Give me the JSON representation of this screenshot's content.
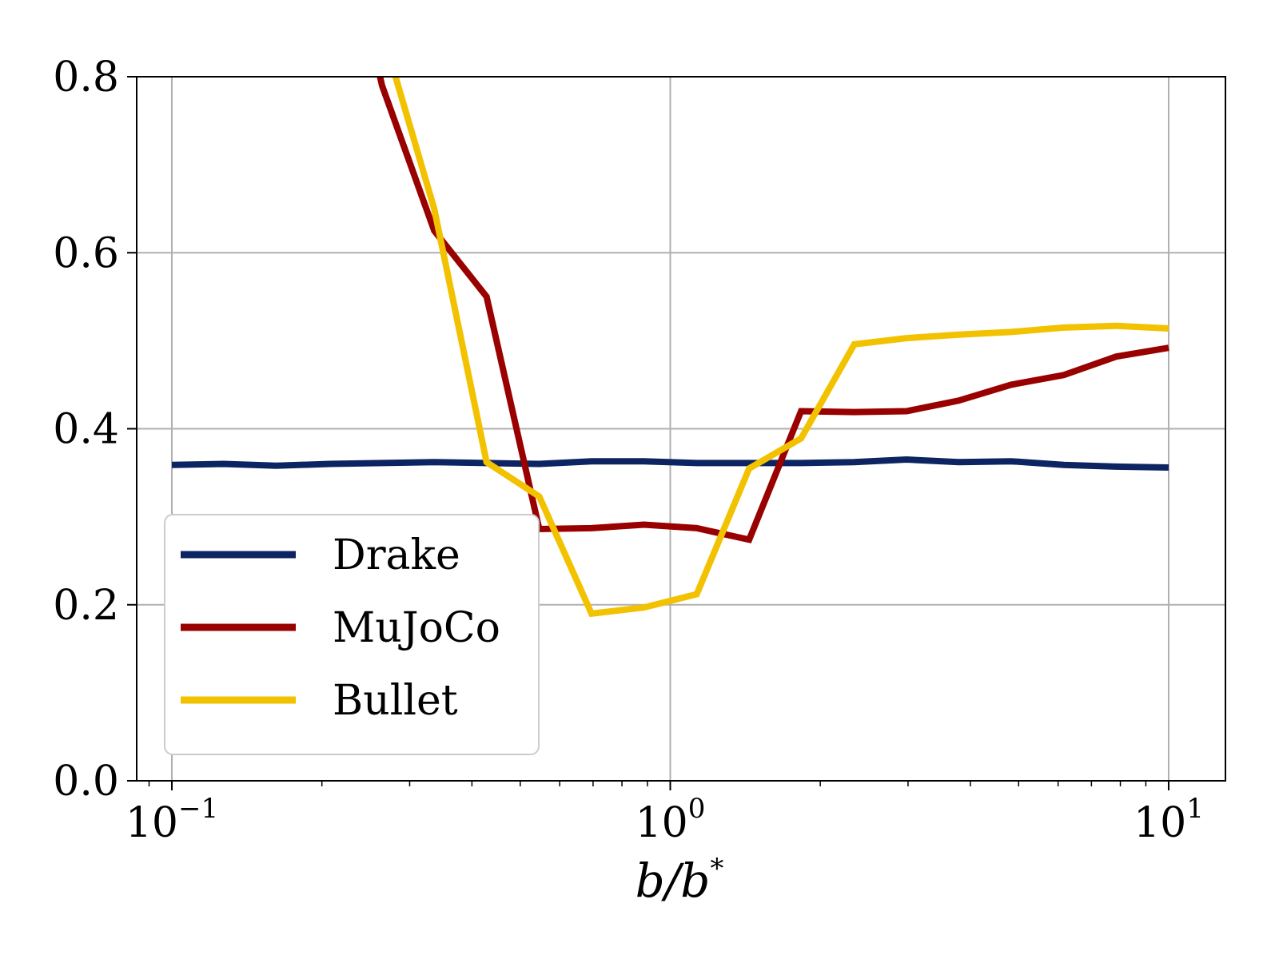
{
  "chart_data": {
    "type": "line",
    "xlabel": "b/b*",
    "ylabel": "",
    "xscale": "log",
    "xlim": [
      0.085,
      13
    ],
    "ylim": [
      0,
      0.8
    ],
    "grid": true,
    "legend_position": "lower-left",
    "x_ticks": [
      {
        "value": 0.1,
        "base": "10",
        "exp": "−1"
      },
      {
        "value": 1,
        "base": "10",
        "exp": "0"
      },
      {
        "value": 10,
        "base": "10",
        "exp": "1"
      }
    ],
    "y_ticks": [
      {
        "value": 0.0,
        "label": "0.0"
      },
      {
        "value": 0.2,
        "label": "0.2"
      },
      {
        "value": 0.4,
        "label": "0.4"
      },
      {
        "value": 0.6,
        "label": "0.6"
      },
      {
        "value": 0.8,
        "label": "0.8"
      }
    ],
    "series": [
      {
        "name": "Drake",
        "color": "#0c2461",
        "points": [
          [
            0.1,
            0.359
          ],
          [
            0.127,
            0.36
          ],
          [
            0.162,
            0.358
          ],
          [
            0.207,
            0.36
          ],
          [
            0.264,
            0.361
          ],
          [
            0.336,
            0.362
          ],
          [
            0.428,
            0.361
          ],
          [
            0.546,
            0.36
          ],
          [
            0.695,
            0.363
          ],
          [
            0.886,
            0.363
          ],
          [
            1.13,
            0.361
          ],
          [
            1.44,
            0.361
          ],
          [
            1.83,
            0.361
          ],
          [
            2.34,
            0.362
          ],
          [
            2.98,
            0.365
          ],
          [
            3.79,
            0.362
          ],
          [
            4.83,
            0.363
          ],
          [
            6.16,
            0.359
          ],
          [
            7.85,
            0.357
          ],
          [
            10.0,
            0.356
          ]
        ]
      },
      {
        "name": "MuJoCo",
        "color": "#990000",
        "points": [
          [
            0.25,
            0.85
          ],
          [
            0.264,
            0.79
          ],
          [
            0.336,
            0.625
          ],
          [
            0.428,
            0.55
          ],
          [
            0.546,
            0.286
          ],
          [
            0.695,
            0.287
          ],
          [
            0.886,
            0.291
          ],
          [
            1.13,
            0.287
          ],
          [
            1.44,
            0.274
          ],
          [
            1.83,
            0.42
          ],
          [
            2.34,
            0.419
          ],
          [
            2.98,
            0.42
          ],
          [
            3.79,
            0.432
          ],
          [
            4.83,
            0.45
          ],
          [
            6.16,
            0.461
          ],
          [
            7.85,
            0.482
          ],
          [
            10.0,
            0.492
          ]
        ]
      },
      {
        "name": "Bullet",
        "color": "#f2c200",
        "points": [
          [
            0.27,
            0.85
          ],
          [
            0.281,
            0.8
          ],
          [
            0.336,
            0.65
          ],
          [
            0.428,
            0.362
          ],
          [
            0.546,
            0.323
          ],
          [
            0.695,
            0.19
          ],
          [
            0.886,
            0.197
          ],
          [
            1.13,
            0.212
          ],
          [
            1.44,
            0.355
          ],
          [
            1.83,
            0.389
          ],
          [
            2.34,
            0.496
          ],
          [
            2.98,
            0.503
          ],
          [
            3.79,
            0.507
          ],
          [
            4.83,
            0.51
          ],
          [
            6.16,
            0.515
          ],
          [
            7.85,
            0.517
          ],
          [
            10.0,
            0.514
          ]
        ]
      }
    ]
  }
}
